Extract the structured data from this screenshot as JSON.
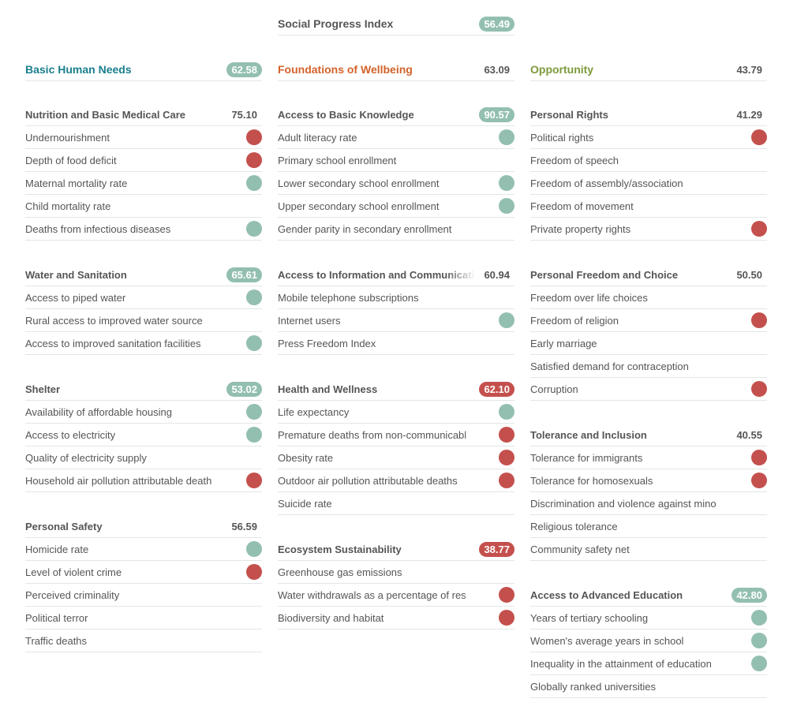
{
  "colors": {
    "good": "#93bfb1",
    "bad": "#c4504d",
    "basic_human_needs": "#1a7f8e",
    "foundations_of_wellbeing": "#d3622a",
    "opportunity": "#7d9a3a"
  },
  "spi": {
    "title": "Social Progress Index",
    "score": "56.49",
    "status": "good"
  },
  "pillars": [
    {
      "title": "Basic Human Needs",
      "score": "62.58",
      "status": "good",
      "color": "#1a7f8e",
      "components": [
        {
          "title": "Nutrition and Basic Medical Care",
          "score": "75.10",
          "status": null,
          "items": [
            {
              "label": "Undernourishment",
              "dot": "bad"
            },
            {
              "label": "Depth of food deficit",
              "dot": "bad"
            },
            {
              "label": "Maternal mortality rate",
              "dot": "good"
            },
            {
              "label": "Child mortality rate",
              "dot": null
            },
            {
              "label": "Deaths from infectious diseases",
              "dot": "good"
            }
          ]
        },
        {
          "title": "Water and Sanitation",
          "score": "65.61",
          "status": "good",
          "items": [
            {
              "label": "Access to piped water",
              "dot": "good"
            },
            {
              "label": "Rural access to improved water source",
              "dot": null
            },
            {
              "label": "Access to improved sanitation facilities",
              "dot": "good"
            }
          ]
        },
        {
          "title": "Shelter",
          "score": "53.02",
          "status": "good",
          "items": [
            {
              "label": "Availability of affordable housing",
              "dot": "good"
            },
            {
              "label": "Access to electricity",
              "dot": "good"
            },
            {
              "label": "Quality of electricity supply",
              "dot": null
            },
            {
              "label": "Household air pollution attributable death",
              "dot": "bad"
            }
          ]
        },
        {
          "title": "Personal Safety",
          "score": "56.59",
          "status": null,
          "items": [
            {
              "label": "Homicide rate",
              "dot": "good"
            },
            {
              "label": "Level of violent crime",
              "dot": "bad"
            },
            {
              "label": "Perceived criminality",
              "dot": null
            },
            {
              "label": "Political terror",
              "dot": null
            },
            {
              "label": "Traffic deaths",
              "dot": null
            }
          ]
        }
      ]
    },
    {
      "title": "Foundations of Wellbeing",
      "score": "63.09",
      "status": null,
      "color": "#d3622a",
      "components": [
        {
          "title": "Access to Basic Knowledge",
          "score": "90.57",
          "status": "good",
          "items": [
            {
              "label": "Adult literacy rate",
              "dot": "good"
            },
            {
              "label": "Primary school enrollment",
              "dot": null
            },
            {
              "label": "Lower secondary school enrollment",
              "dot": "good"
            },
            {
              "label": "Upper secondary school enrollment",
              "dot": "good"
            },
            {
              "label": "Gender parity in secondary enrollment",
              "dot": null
            }
          ]
        },
        {
          "title": "Access to Information and Communicati",
          "score": "60.94",
          "status": null,
          "items": [
            {
              "label": "Mobile telephone subscriptions",
              "dot": null
            },
            {
              "label": "Internet users",
              "dot": "good"
            },
            {
              "label": "Press Freedom Index",
              "dot": null
            }
          ]
        },
        {
          "title": "Health and Wellness",
          "score": "62.10",
          "status": "bad",
          "items": [
            {
              "label": "Life expectancy",
              "dot": "good"
            },
            {
              "label": "Premature deaths from non-communicabl",
              "dot": "bad"
            },
            {
              "label": "Obesity rate",
              "dot": "bad"
            },
            {
              "label": "Outdoor air pollution attributable deaths",
              "dot": "bad"
            },
            {
              "label": "Suicide rate",
              "dot": null
            }
          ]
        },
        {
          "title": "Ecosystem Sustainability",
          "score": "38.77",
          "status": "bad",
          "items": [
            {
              "label": "Greenhouse gas emissions",
              "dot": null
            },
            {
              "label": "Water withdrawals as a percentage of res",
              "dot": "bad"
            },
            {
              "label": "Biodiversity and habitat",
              "dot": "bad"
            }
          ]
        }
      ]
    },
    {
      "title": "Opportunity",
      "score": "43.79",
      "status": null,
      "color": "#7d9a3a",
      "components": [
        {
          "title": "Personal Rights",
          "score": "41.29",
          "status": null,
          "items": [
            {
              "label": "Political rights",
              "dot": "bad"
            },
            {
              "label": "Freedom of speech",
              "dot": null
            },
            {
              "label": "Freedom of assembly/association",
              "dot": null
            },
            {
              "label": "Freedom of movement",
              "dot": null
            },
            {
              "label": "Private property rights",
              "dot": "bad"
            }
          ]
        },
        {
          "title": "Personal Freedom and Choice",
          "score": "50.50",
          "status": null,
          "items": [
            {
              "label": "Freedom over life choices",
              "dot": null
            },
            {
              "label": "Freedom of religion",
              "dot": "bad"
            },
            {
              "label": "Early marriage",
              "dot": null
            },
            {
              "label": "Satisfied demand for contraception",
              "dot": null
            },
            {
              "label": "Corruption",
              "dot": "bad"
            }
          ]
        },
        {
          "title": "Tolerance and Inclusion",
          "score": "40.55",
          "status": null,
          "items": [
            {
              "label": "Tolerance for immigrants",
              "dot": "bad"
            },
            {
              "label": "Tolerance for homosexuals",
              "dot": "bad"
            },
            {
              "label": "Discrimination and violence against mino",
              "dot": null
            },
            {
              "label": "Religious tolerance",
              "dot": null
            },
            {
              "label": "Community safety net",
              "dot": null
            }
          ]
        },
        {
          "title": "Access to Advanced Education",
          "score": "42.80",
          "status": "good",
          "items": [
            {
              "label": "Years of tertiary schooling",
              "dot": "good"
            },
            {
              "label": "Women's average years in school",
              "dot": "good"
            },
            {
              "label": "Inequality in the attainment of education",
              "dot": "good"
            },
            {
              "label": "Globally ranked universities",
              "dot": null
            }
          ]
        }
      ]
    }
  ]
}
